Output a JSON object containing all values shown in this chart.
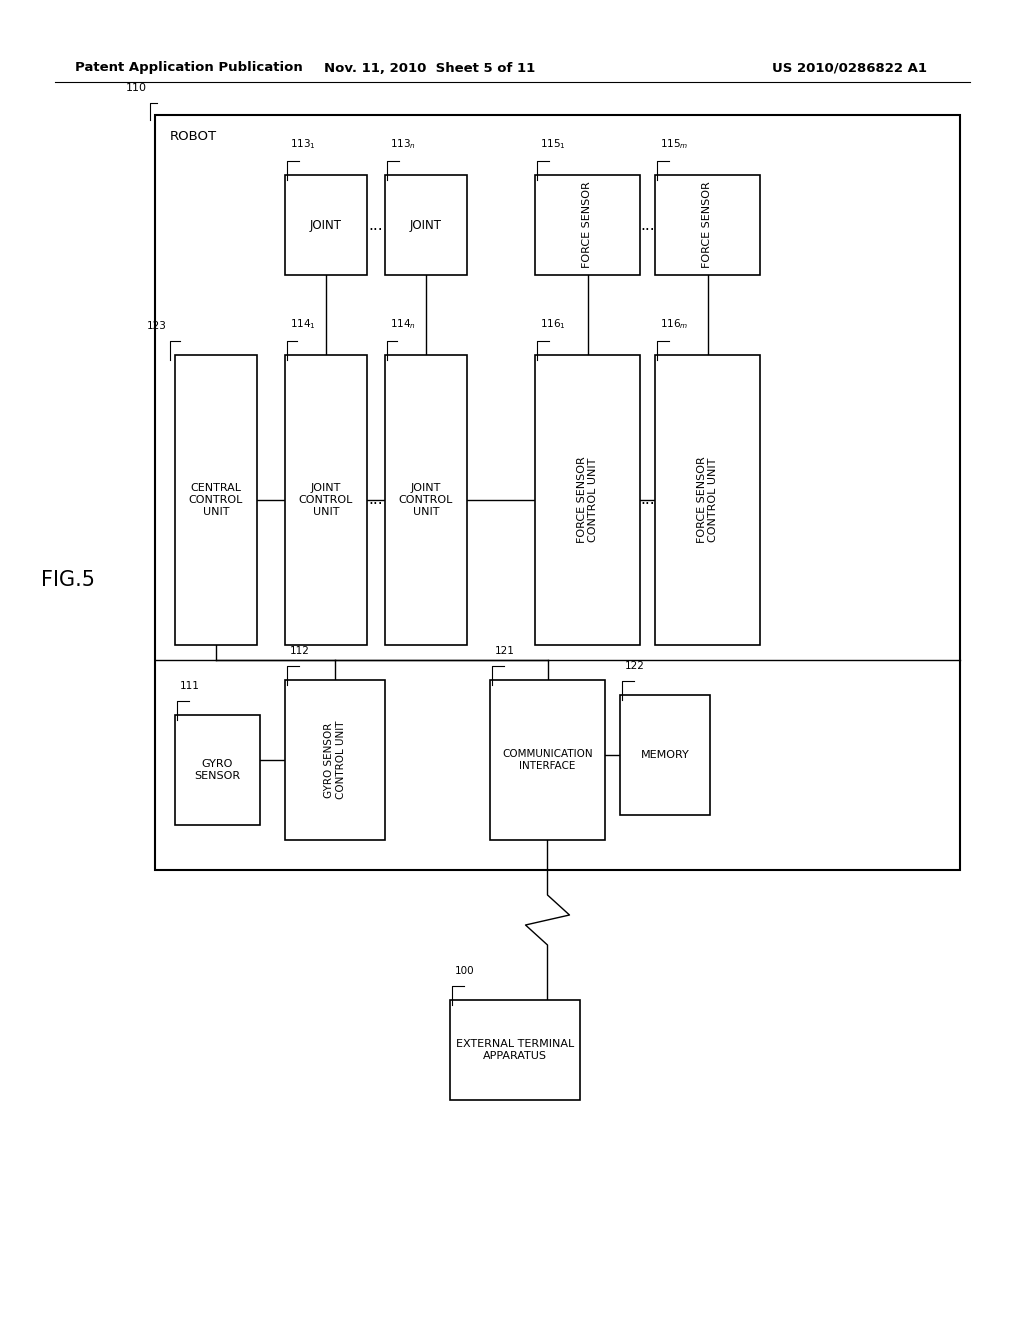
{
  "bg_color": "#ffffff",
  "header_left": "Patent Application Publication",
  "header_mid": "Nov. 11, 2010  Sheet 5 of 11",
  "header_right": "US 2010/0286822 A1",
  "fig_label": "FIG.5"
}
